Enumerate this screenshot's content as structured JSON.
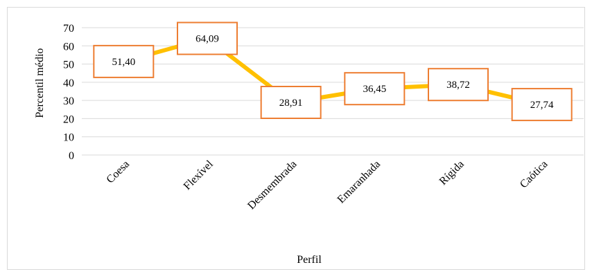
{
  "chart_data": {
    "type": "line",
    "categories": [
      "Coesa",
      "Flexível",
      "Desmembrada",
      "Emaranhada",
      "Rígida",
      "Caótica"
    ],
    "values": [
      51.4,
      64.09,
      28.91,
      36.45,
      38.72,
      27.74
    ],
    "data_labels": [
      "51,40",
      "64,09",
      "28,91",
      "36,45",
      "38,72",
      "27,74"
    ],
    "xlabel": "Perfil",
    "ylabel": "Percentil médio",
    "ylim": [
      0,
      70
    ],
    "yticks": [
      0,
      10,
      20,
      30,
      40,
      50,
      60,
      70
    ],
    "grid": true,
    "legend": "none",
    "colors": {
      "line": "#FFC000",
      "label_border": "#ED7D31",
      "grid": "#d9d9d9",
      "text": "#000000"
    }
  }
}
